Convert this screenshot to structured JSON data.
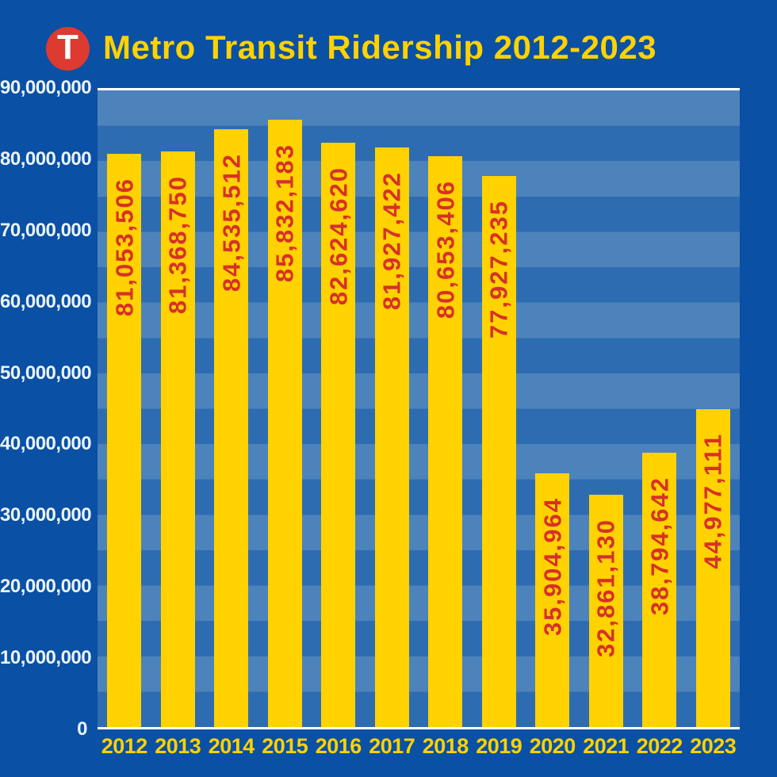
{
  "header": {
    "title": "Metro Transit Ridership 2012-2023",
    "logo": {
      "letter": "T"
    }
  },
  "colors": {
    "background": "#0a50a4",
    "stripe_light": "#4d83bb",
    "stripe_dark": "#2e6cb2",
    "bar": "#ffd200",
    "bar_label": "#d63129",
    "axis_line": "#ffffff",
    "y_tick_label": "#eaf4fb",
    "x_tick_label": "#ffd200",
    "title": "#ffd200",
    "logo_background": "#dd3a30",
    "logo_letter": "#ffffff"
  },
  "chart_data": {
    "type": "bar",
    "title": "Metro Transit Ridership 2012-2023",
    "categories": [
      "2012",
      "2013",
      "2014",
      "2015",
      "2016",
      "2017",
      "2018",
      "2019",
      "2020",
      "2021",
      "2022",
      "2023"
    ],
    "values": [
      81053506,
      81368750,
      84535512,
      85832183,
      82624620,
      81927422,
      80653406,
      77927235,
      35904964,
      32861130,
      38794642,
      44977111
    ],
    "value_labels": [
      "81,053,506",
      "81,368,750",
      "84,535,512",
      "85,832,183",
      "82,624,620",
      "81,927,422",
      "80,653,406",
      "77,927,235",
      "35,904,964",
      "32,861,130",
      "38,794,642",
      "44,977,111"
    ],
    "xlabel": "",
    "ylabel": "",
    "ylim": [
      0,
      90000000
    ],
    "ytick_interval": 10000000,
    "ytick_labels": [
      "0",
      "10,000,000",
      "20,000,000",
      "30,000,000",
      "40,000,000",
      "50,000,000",
      "60,000,000",
      "70,000,000",
      "80,000,000",
      "90,000,000"
    ],
    "grid": "horizontal stripes every 5,000,000; white lines at 0 and 90,000,000",
    "legend": "none",
    "bar_label_style": "red, rotated 90deg, reads bottom-to-top, anchored near bar top"
  }
}
